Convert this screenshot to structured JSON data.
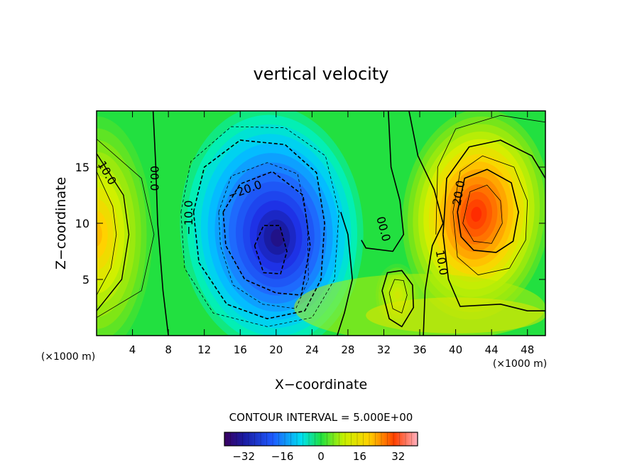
{
  "chart_data": {
    "type": "heatmap",
    "title": "vertical velocity",
    "xlabel": "X−coordinate",
    "ylabel": "Z−coordinate",
    "x_unit": "(×1000 m)",
    "z_unit": "(×1000 m)",
    "xlim": [
      0,
      50
    ],
    "ylim": [
      0,
      20
    ],
    "x_ticks": [
      4,
      8,
      12,
      16,
      20,
      24,
      28,
      32,
      36,
      40,
      44,
      48
    ],
    "x_tick_labels": [
      "4",
      "8",
      "12",
      "16",
      "20",
      "24",
      "28",
      "32",
      "36",
      "40",
      "44",
      "48"
    ],
    "y_ticks": [
      5,
      10,
      15
    ],
    "y_tick_labels": [
      "5",
      "10",
      "15"
    ],
    "contour_interval_label": "CONTOUR INTERVAL = 5.000E+00",
    "contour_interval": 5.0,
    "colorbar": {
      "range": [
        -40,
        40
      ],
      "ticks": [
        -32,
        -16,
        0,
        16,
        32
      ],
      "tick_labels": [
        "−32",
        "−16",
        "0",
        "16",
        "32"
      ]
    },
    "features": [
      {
        "name": "left-edge-updraft",
        "x": 0,
        "z": 9,
        "peak": 22
      },
      {
        "name": "central-downdraft",
        "x": 19.5,
        "z": 8.5,
        "peak": -38
      },
      {
        "name": "lower-updraft",
        "x": 33.5,
        "z": 3.5,
        "peak": 17
      },
      {
        "name": "right-updraft",
        "x": 42.5,
        "z": 10.5,
        "peak": 36
      }
    ],
    "contour_labels": [
      {
        "text": "10.0",
        "x": 1.2,
        "z": 14.5,
        "rotate": 60
      },
      {
        "text": "00.0",
        "x": 6.5,
        "z": 14.0,
        "rotate": 90
      },
      {
        "text": "−10.0",
        "x": 10.2,
        "z": 10.5,
        "rotate": -90
      },
      {
        "text": "−20.0",
        "x": 16.5,
        "z": 13.0,
        "rotate": -20
      },
      {
        "text": "00.0",
        "x": 32.0,
        "z": 9.5,
        "rotate": 75
      },
      {
        "text": "10.0",
        "x": 38.5,
        "z": 6.5,
        "rotate": 80
      },
      {
        "text": "20.0",
        "x": 40.3,
        "z": 12.7,
        "rotate": -80
      }
    ]
  }
}
